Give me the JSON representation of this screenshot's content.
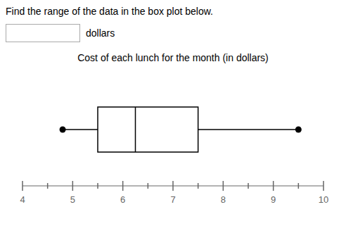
{
  "chart_data": {
    "type": "box",
    "title": "Cost of each lunch for the month (in dollars)",
    "annotations": [
      "Find the range of the data in the box plot below.",
      "dollars"
    ],
    "min": 4.8,
    "q1": 5.5,
    "median": 6.25,
    "q3": 7.5,
    "max": 9.5,
    "xlim": [
      4,
      10
    ],
    "xticks": [
      4,
      5,
      6,
      7,
      8,
      9,
      10
    ],
    "minor_xticks": [
      4.5,
      5.5,
      6.5,
      7.5,
      8.5,
      9.5
    ],
    "grid": false,
    "color": "black"
  }
}
